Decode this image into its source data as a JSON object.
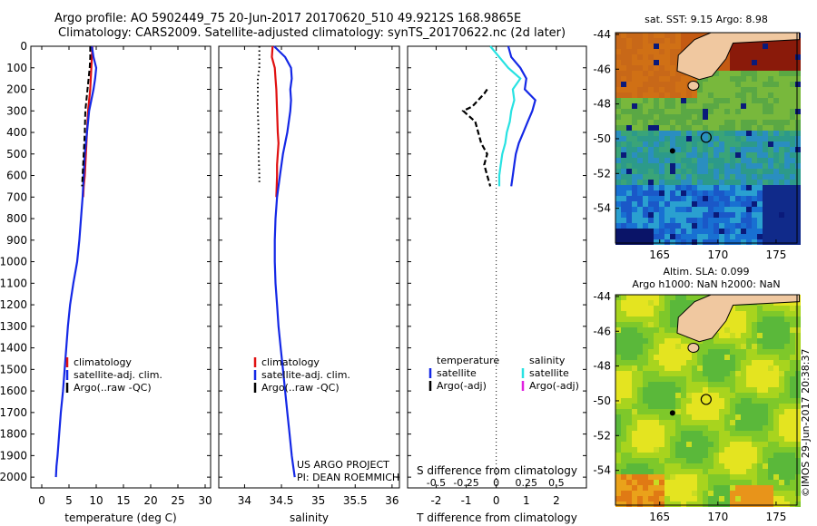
{
  "title_line1": "Argo profile: AO 5902449_75 20-Jun-2017 20170620_510 49.9212S 168.9865E",
  "title_line2": "Climatology: CARS2009. Satellite-adjusted climatology: synTS_20170622.nc (2d later)",
  "credit": [
    "US ARGO PROJECT",
    "PI: DEAN ROEMMICH"
  ],
  "stamp": "©IMOS 29-Jun-2017 20:38:37",
  "colors": {
    "climatology": "#e01010",
    "satellite": "#1428e6",
    "argo": "#000000",
    "satellite_salinity": "#28e2e2",
    "argo_salinity_adj": "#e020e0",
    "land": "#f0c8a0",
    "circle": "#000000"
  },
  "chart_data": [
    {
      "type": "line",
      "panel": "temperature",
      "xlabel": "temperature (deg C)",
      "ylabel": "",
      "xlim": [
        -2,
        31
      ],
      "ylim": [
        2050,
        0
      ],
      "xticks": [
        "0",
        "5",
        "10",
        "15",
        "20",
        "25",
        "30"
      ],
      "yticks": [
        "0",
        "100",
        "200",
        "300",
        "400",
        "500",
        "600",
        "700",
        "800",
        "900",
        "1000",
        "1100",
        "1200",
        "1300",
        "1400",
        "1500",
        "1600",
        "1700",
        "1800",
        "1900",
        "2000"
      ],
      "legend": [
        "climatology",
        "satellite-adj. clim.",
        "Argo(..raw -QC)"
      ],
      "series": [
        {
          "name": "climatology",
          "style": "solid",
          "color_key": "climatology",
          "x": [
            9.3,
            9.2,
            9.1,
            9.0,
            8.9,
            8.7,
            8.5,
            8.3,
            8.1,
            7.9,
            7.7,
            7.6
          ],
          "y": [
            0,
            50,
            100,
            150,
            200,
            250,
            300,
            400,
            500,
            600,
            650,
            700
          ]
        },
        {
          "name": "satellite-adj. clim.",
          "style": "solid",
          "color_key": "satellite",
          "x": [
            9.2,
            9.5,
            10.0,
            9.8,
            9.5,
            9.1,
            8.7,
            8.3,
            7.9,
            7.7,
            7.5,
            7.2,
            6.9,
            6.5,
            5.8,
            5.2,
            4.8,
            4.5,
            4.2,
            3.9,
            3.5,
            3.2,
            2.9,
            2.7,
            2.6
          ],
          "y": [
            0,
            50,
            100,
            150,
            200,
            250,
            300,
            400,
            500,
            600,
            700,
            800,
            900,
            1000,
            1100,
            1200,
            1300,
            1400,
            1500,
            1600,
            1700,
            1800,
            1900,
            1950,
            2000
          ]
        },
        {
          "name": "Argo(..raw -QC)",
          "style": "dashed",
          "color_key": "argo",
          "x": [
            8.9,
            8.9,
            8.8,
            8.6,
            8.4,
            8.2,
            8.0,
            7.9,
            7.7,
            7.5,
            7.4
          ],
          "y": [
            0,
            50,
            100,
            150,
            200,
            250,
            300,
            400,
            500,
            600,
            650
          ]
        }
      ]
    },
    {
      "type": "line",
      "panel": "salinity",
      "xlabel": "salinity",
      "ylabel": "",
      "xlim": [
        33.65,
        36.1
      ],
      "ylim": [
        2050,
        0
      ],
      "xticks": [
        "34",
        "34.5",
        "35",
        "35.5",
        "36"
      ],
      "legend": [
        "climatology",
        "satellite-adj. clim.",
        "Argo(..raw -QC)"
      ],
      "series": [
        {
          "name": "climatology",
          "style": "solid",
          "color_key": "climatology",
          "x": [
            34.38,
            34.37,
            34.41,
            34.42,
            34.43,
            34.44,
            34.45,
            34.46,
            34.45,
            34.44,
            34.44,
            34.43
          ],
          "y": [
            0,
            50,
            100,
            150,
            200,
            300,
            400,
            450,
            500,
            550,
            600,
            700
          ]
        },
        {
          "name": "satellite-adj. clim.",
          "style": "solid",
          "color_key": "satellite",
          "x": [
            34.4,
            34.55,
            34.63,
            34.64,
            34.62,
            34.63,
            34.62,
            34.58,
            34.52,
            34.48,
            34.44,
            34.42,
            34.41,
            34.41,
            34.42,
            34.44,
            34.46,
            34.49,
            34.52,
            34.55,
            34.58,
            34.61,
            34.64,
            34.66,
            34.68
          ],
          "y": [
            0,
            50,
            100,
            150,
            200,
            250,
            300,
            400,
            500,
            600,
            700,
            800,
            900,
            1000,
            1100,
            1200,
            1300,
            1400,
            1500,
            1600,
            1700,
            1800,
            1900,
            1950,
            2000
          ]
        },
        {
          "name": "Argo(..raw -QC)",
          "style": "dotted",
          "color_key": "argo",
          "x": [
            34.2,
            34.2,
            34.2,
            34.18,
            34.18,
            34.18,
            34.18,
            34.19,
            34.19,
            34.2,
            34.2
          ],
          "y": [
            0,
            50,
            100,
            150,
            200,
            250,
            300,
            400,
            500,
            600,
            630
          ]
        }
      ]
    },
    {
      "type": "line",
      "panel": "difference",
      "xlabel": "T difference from climatology",
      "xlabel_top": "S difference from climatology",
      "xlim": [
        -2.95,
        3.0
      ],
      "ylim": [
        2050,
        0
      ],
      "xticks": [
        "-2",
        "-1",
        "0",
        "1",
        "2"
      ],
      "xticks_s": [
        "-0.5",
        "-0.25",
        "0",
        "0.25",
        "0.5"
      ],
      "legend": [
        "temperature",
        "satellite",
        "Argo(-adj)",
        "salinity",
        "satellite",
        "Argo(-adj)"
      ],
      "series": [
        {
          "name": "satellite",
          "style": "solid",
          "color_key": "satellite",
          "x": [
            0.4,
            0.5,
            0.8,
            1.0,
            0.95,
            1.3,
            1.2,
            1.05,
            0.9,
            0.75,
            0.65,
            0.6,
            0.55,
            0.5
          ],
          "y": [
            0,
            50,
            100,
            150,
            200,
            250,
            300,
            350,
            400,
            450,
            500,
            550,
            600,
            650
          ]
        },
        {
          "name": "satellite",
          "style": "solid",
          "color_key": "satellite_salinity",
          "x": [
            -0.2,
            0.1,
            0.4,
            0.8,
            0.55,
            0.6,
            0.5,
            0.45,
            0.35,
            0.3,
            0.2,
            0.15,
            0.1,
            0.1
          ],
          "y": [
            0,
            50,
            100,
            150,
            200,
            250,
            300,
            350,
            400,
            450,
            500,
            550,
            600,
            650
          ]
        },
        {
          "name": "Argo(-adj)",
          "style": "dashed",
          "color_key": "argo",
          "x": [
            -0.3,
            -0.4,
            -0.6,
            -0.8,
            -1.1,
            -0.7,
            -0.6,
            -0.5,
            -0.3,
            -0.4,
            -0.3,
            -0.2
          ],
          "y": [
            200,
            220,
            250,
            280,
            300,
            350,
            400,
            450,
            500,
            550,
            600,
            650
          ]
        }
      ]
    },
    {
      "type": "heatmap",
      "panel": "sst_map",
      "title": "sat. SST: 9.15 Argo: 8.98",
      "xlim": [
        161.2,
        176.8
      ],
      "ylim": [
        -56,
        -43.9
      ],
      "xticks": [
        "165",
        "170",
        "175"
      ],
      "yticks": [
        "-44",
        "-46",
        "-48",
        "-50",
        "-52",
        "-54"
      ],
      "marker": {
        "lon": 168.99,
        "lat": -49.92
      }
    },
    {
      "type": "heatmap",
      "panel": "sla_map",
      "title": "Altim. SLA: 0.099",
      "subtitle": "Argo h1000: NaN h2000: NaN",
      "xlim": [
        161.2,
        176.8
      ],
      "ylim": [
        -56,
        -43.9
      ],
      "xticks": [
        "165",
        "170",
        "175"
      ],
      "yticks": [
        "-44",
        "-46",
        "-48",
        "-50",
        "-52",
        "-54"
      ],
      "marker": {
        "lon": 168.99,
        "lat": -49.92
      }
    }
  ]
}
